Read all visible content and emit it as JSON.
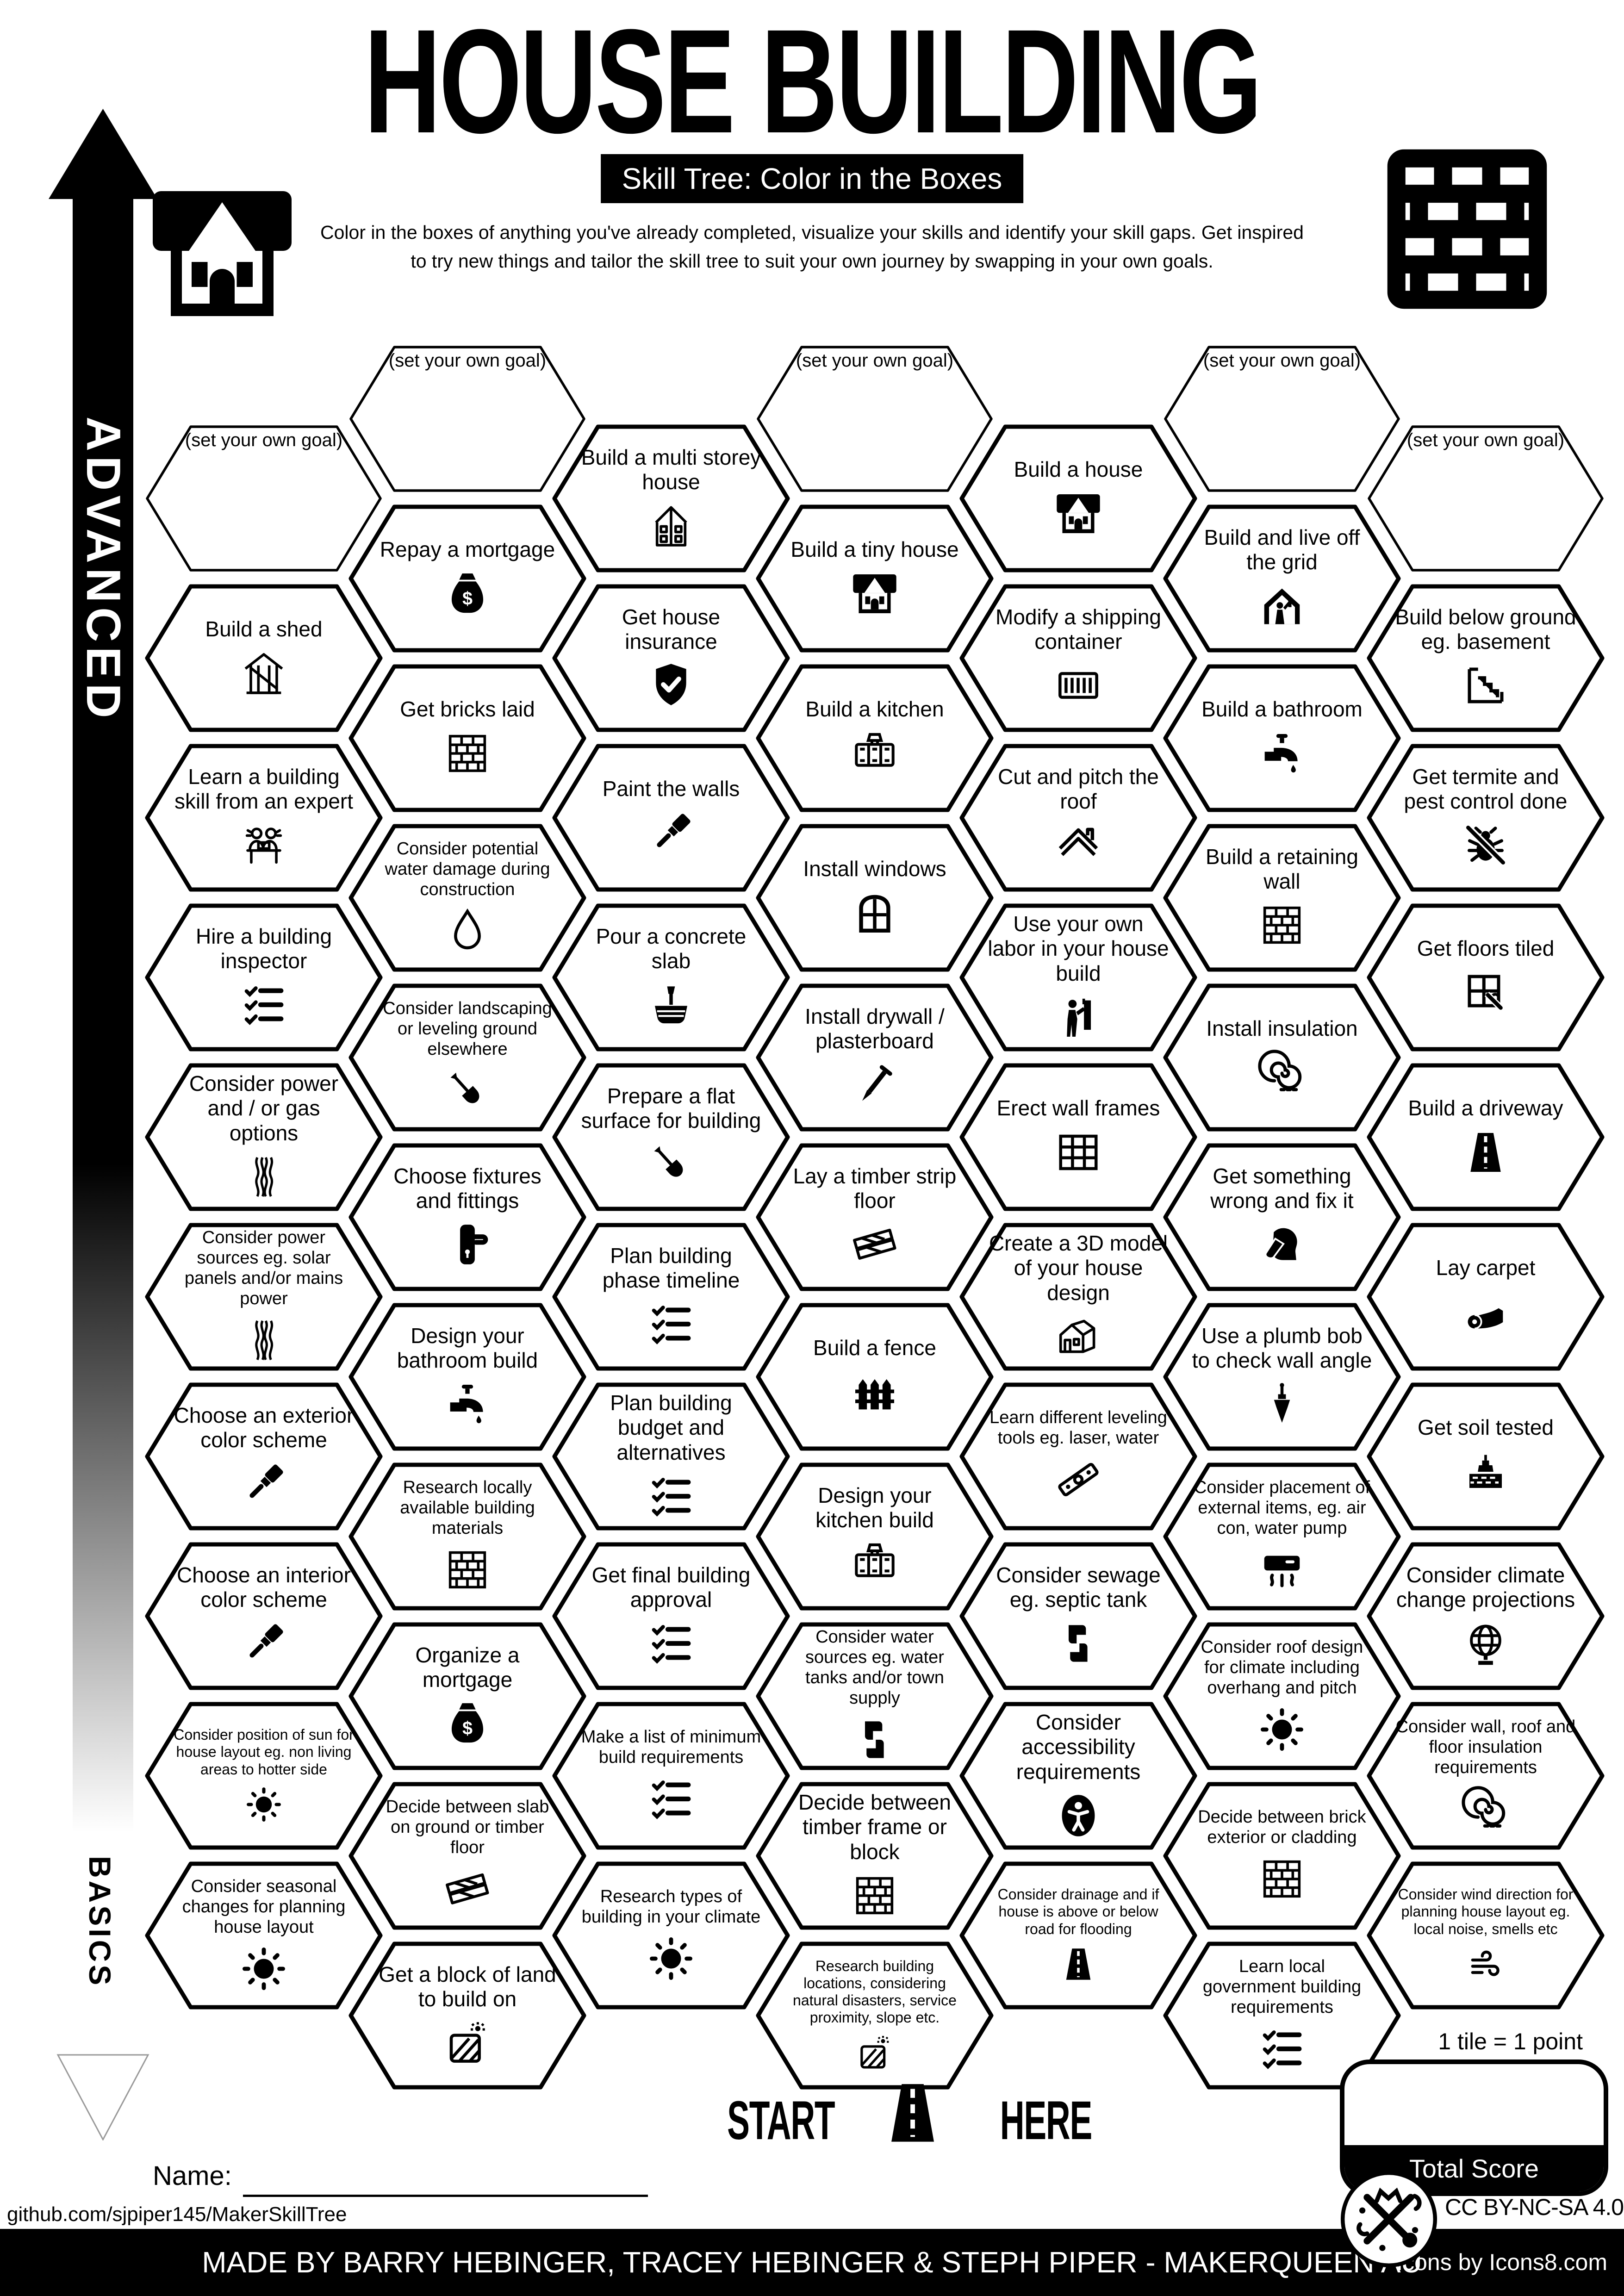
{
  "header": {
    "title": "HOUSE BUILDING",
    "subtitle": "Skill Tree: Color in the Boxes",
    "description_line1": "Color in the boxes of anything you've already completed, visualize your skills and identify your skill gaps.  Get inspired",
    "description_line2": "to try new things and tailor the skill tree to suit your own journey by swapping in your own goals."
  },
  "axis": {
    "advanced": "ADVANCED",
    "basics": "BASICS"
  },
  "start_here": {
    "start": "START",
    "here": "HERE"
  },
  "scoring": {
    "tile_note": "1 tile = 1 point",
    "total_label": "Total Score"
  },
  "footer": {
    "name_label": "Name:",
    "github": "github.com/sjpiper145/MakerSkillTree",
    "license": "CC BY-NC-SA 4.0",
    "made_by": "MADE BY BARRY HEBINGER, TRACEY HEBINGER & STEPH PIPER  -  MAKERQUEEN AU",
    "icons_credit": "Icons by Icons8.com"
  },
  "colors": {
    "ink": "#000000",
    "paper": "#ffffff"
  },
  "hexes": [
    {
      "col": 1,
      "row": 0,
      "label": "(set your own goal)",
      "icon": "goal"
    },
    {
      "col": 1,
      "row": 1,
      "label": "Build a shed",
      "icon": "shed"
    },
    {
      "col": 1,
      "row": 2,
      "label": "Learn a building skill from an expert",
      "icon": "people"
    },
    {
      "col": 1,
      "row": 3,
      "label": "Hire a building inspector",
      "icon": "checklist"
    },
    {
      "col": 1,
      "row": 4,
      "label": "Consider power and / or gas options",
      "icon": "cables"
    },
    {
      "col": 1,
      "row": 5,
      "label": "Consider power sources eg. solar panels and/or mains power",
      "icon": "cables"
    },
    {
      "col": 1,
      "row": 6,
      "label": "Choose an exterior color scheme",
      "icon": "brush"
    },
    {
      "col": 1,
      "row": 7,
      "label": "Choose an interior color scheme",
      "icon": "brush"
    },
    {
      "col": 1,
      "row": 8,
      "label": "Consider position of sun for house layout eg. non living areas to hotter side",
      "icon": "sun"
    },
    {
      "col": 1,
      "row": 9,
      "label": "Consider seasonal changes for planning house layout",
      "icon": "sun"
    },
    {
      "col": 2,
      "row": 0,
      "label": "(set your own goal)",
      "icon": "goal"
    },
    {
      "col": 2,
      "row": 1,
      "label": "Repay a mortgage",
      "icon": "money-bag"
    },
    {
      "col": 2,
      "row": 2,
      "label": "Get bricks laid",
      "icon": "brick"
    },
    {
      "col": 2,
      "row": 3,
      "label": "Consider potential water damage during construction",
      "icon": "drop"
    },
    {
      "col": 2,
      "row": 4,
      "label": "Consider landscaping or leveling ground elsewhere",
      "icon": "shovel"
    },
    {
      "col": 2,
      "row": 5,
      "label": "Choose fixtures and fittings",
      "icon": "door-handle"
    },
    {
      "col": 2,
      "row": 6,
      "label": "Design your bathroom build",
      "icon": "faucet"
    },
    {
      "col": 2,
      "row": 7,
      "label": "Research locally available building materials",
      "icon": "brick"
    },
    {
      "col": 2,
      "row": 8,
      "label": "Organize a mortgage",
      "icon": "money-bag"
    },
    {
      "col": 2,
      "row": 9,
      "label": "Decide between slab on ground or timber floor",
      "icon": "timber"
    },
    {
      "col": 2,
      "row": 10,
      "label": "Get a block of land to build on",
      "icon": "field"
    },
    {
      "col": 3,
      "row": 0,
      "label": "Build a multi storey house",
      "icon": "multi-storey"
    },
    {
      "col": 3,
      "row": 1,
      "label": "Get house insurance",
      "icon": "shield-check"
    },
    {
      "col": 3,
      "row": 2,
      "label": "Paint the walls",
      "icon": "brush"
    },
    {
      "col": 3,
      "row": 3,
      "label": "Pour a concrete slab",
      "icon": "trowel"
    },
    {
      "col": 3,
      "row": 4,
      "label": "Prepare a flat surface for building",
      "icon": "shovel"
    },
    {
      "col": 3,
      "row": 5,
      "label": "Plan building phase timeline",
      "icon": "checklist"
    },
    {
      "col": 3,
      "row": 6,
      "label": "Plan building budget and alternatives",
      "icon": "checklist"
    },
    {
      "col": 3,
      "row": 7,
      "label": "Get final building approval",
      "icon": "checklist"
    },
    {
      "col": 3,
      "row": 8,
      "label": "Make a list of minimum build requirements",
      "icon": "checklist"
    },
    {
      "col": 3,
      "row": 9,
      "label": "Research types of building in your climate",
      "icon": "sun"
    },
    {
      "col": 4,
      "row": 0,
      "label": "(set your own goal)",
      "icon": "goal"
    },
    {
      "col": 4,
      "row": 1,
      "label": "Build a tiny house",
      "icon": "house"
    },
    {
      "col": 4,
      "row": 2,
      "label": "Build a kitchen",
      "icon": "kitchen"
    },
    {
      "col": 4,
      "row": 3,
      "label": "Install windows",
      "icon": "window"
    },
    {
      "col": 4,
      "row": 4,
      "label": "Install drywall / plasterboard",
      "icon": "nail"
    },
    {
      "col": 4,
      "row": 5,
      "label": "Lay a timber strip floor",
      "icon": "timber"
    },
    {
      "col": 4,
      "row": 6,
      "label": "Build a fence",
      "icon": "fence"
    },
    {
      "col": 4,
      "row": 7,
      "label": "Design your kitchen build",
      "icon": "kitchen"
    },
    {
      "col": 4,
      "row": 8,
      "label": "Consider water sources eg. water tanks and/or town supply",
      "icon": "pipe"
    },
    {
      "col": 4,
      "row": 9,
      "label": "Decide between timber frame or block",
      "icon": "brick"
    },
    {
      "col": 4,
      "row": 10,
      "label": "Research building locations, considering natural disasters, service proximity, slope etc.",
      "icon": "field"
    },
    {
      "col": 5,
      "row": 0,
      "label": "Build a house",
      "icon": "house"
    },
    {
      "col": 5,
      "row": 1,
      "label": "Modify a shipping container",
      "icon": "container"
    },
    {
      "col": 5,
      "row": 2,
      "label": "Cut and pitch the roof",
      "icon": "roof"
    },
    {
      "col": 5,
      "row": 3,
      "label": "Use your own labor in your house build",
      "icon": "worker"
    },
    {
      "col": 5,
      "row": 4,
      "label": "Erect wall frames",
      "icon": "wall-frames"
    },
    {
      "col": 5,
      "row": 5,
      "label": "Create a 3D model of your house design",
      "icon": "house-3d"
    },
    {
      "col": 5,
      "row": 6,
      "label": "Learn different leveling tools eg. laser, water",
      "icon": "level"
    },
    {
      "col": 5,
      "row": 7,
      "label": "Consider sewage eg. septic tank",
      "icon": "pipe"
    },
    {
      "col": 5,
      "row": 8,
      "label": "Consider accessibility requirements",
      "icon": "accessibility"
    },
    {
      "col": 5,
      "row": 9,
      "label": "Consider drainage and if house is above or below road for flooding",
      "icon": "road"
    },
    {
      "col": 6,
      "row": 0,
      "label": "(set your own goal)",
      "icon": "goal"
    },
    {
      "col": 6,
      "row": 1,
      "label": "Build and live off the grid",
      "icon": "off-grid"
    },
    {
      "col": 6,
      "row": 2,
      "label": "Build a bathroom",
      "icon": "faucet"
    },
    {
      "col": 6,
      "row": 3,
      "label": "Build a retaining wall",
      "icon": "brick"
    },
    {
      "col": 6,
      "row": 4,
      "label": "Install insulation",
      "icon": "insulation"
    },
    {
      "col": 6,
      "row": 5,
      "label": "Get something wrong and fix it",
      "icon": "facepalm"
    },
    {
      "col": 6,
      "row": 6,
      "label": "Use a plumb bob to check wall angle",
      "icon": "plumb-bob"
    },
    {
      "col": 6,
      "row": 7,
      "label": "Consider placement of external items, eg. air con, water pump",
      "icon": "aircon"
    },
    {
      "col": 6,
      "row": 8,
      "label": "Consider roof design for climate including overhang and pitch",
      "icon": "sun"
    },
    {
      "col": 6,
      "row": 9,
      "label": "Decide between brick exterior or cladding",
      "icon": "brick"
    },
    {
      "col": 6,
      "row": 10,
      "label": "Learn local government building requirements",
      "icon": "checklist"
    },
    {
      "col": 7,
      "row": 0,
      "label": "(set your own goal)",
      "icon": "goal"
    },
    {
      "col": 7,
      "row": 1,
      "label": "Build below ground eg. basement",
      "icon": "basement"
    },
    {
      "col": 7,
      "row": 2,
      "label": "Get termite and pest control done",
      "icon": "bug-slash"
    },
    {
      "col": 7,
      "row": 3,
      "label": "Get floors tiled",
      "icon": "tile"
    },
    {
      "col": 7,
      "row": 4,
      "label": "Build a driveway",
      "icon": "road"
    },
    {
      "col": 7,
      "row": 5,
      "label": "Lay carpet",
      "icon": "carpet"
    },
    {
      "col": 7,
      "row": 6,
      "label": "Get soil tested",
      "icon": "soil-test"
    },
    {
      "col": 7,
      "row": 7,
      "label": "Consider climate change projections",
      "icon": "globe"
    },
    {
      "col": 7,
      "row": 8,
      "label": "Consider wall, roof and floor insulation requirements",
      "icon": "insulation"
    },
    {
      "col": 7,
      "row": 9,
      "label": "Consider wind direction for planning house layout eg. local noise, smells etc",
      "icon": "wind"
    }
  ]
}
